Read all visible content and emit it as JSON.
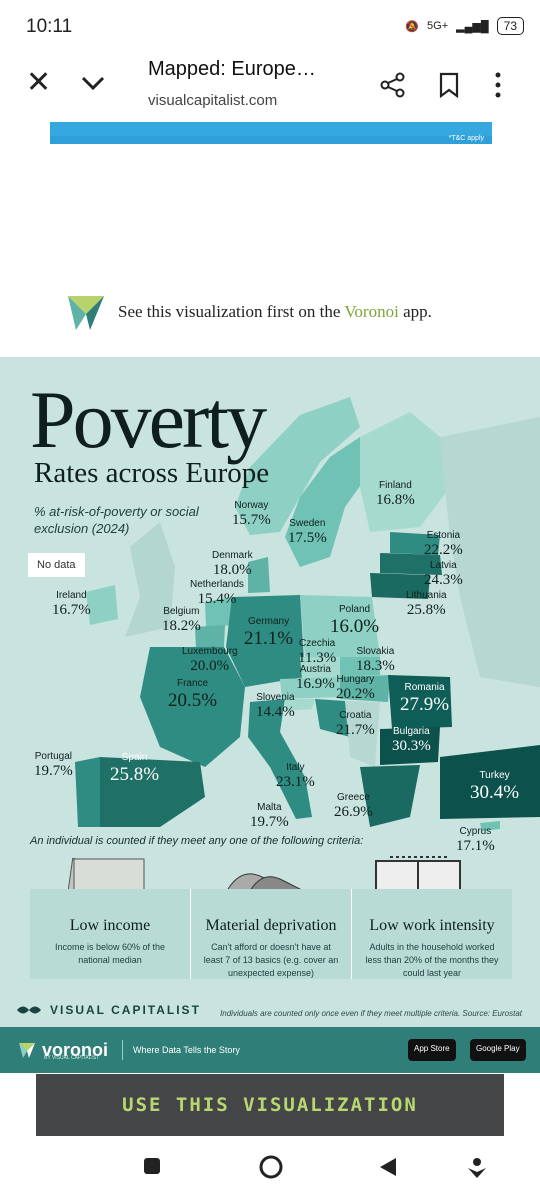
{
  "status": {
    "time": "10:11",
    "network": "5G+",
    "battery": "73"
  },
  "toolbar": {
    "title": "Mapped: Europe…",
    "url": "visualcapitalist.com"
  },
  "ad": {
    "disclaimer": "*T&C apply"
  },
  "voronoi_promo": {
    "prefix": "See this visualization first on the ",
    "brand": "Voronoi",
    "suffix": " app."
  },
  "infographic": {
    "title": "Poverty",
    "subtitle": "Rates across Europe",
    "description": "% at-risk-of-poverty or social exclusion (2024)",
    "no_data": "No data",
    "countries": [
      {
        "name": "Finland",
        "value": "16.8%"
      },
      {
        "name": "Norway",
        "value": "15.7%"
      },
      {
        "name": "Sweden",
        "value": "17.5%"
      },
      {
        "name": "Estonia",
        "value": "22.2%"
      },
      {
        "name": "Latvia",
        "value": "24.3%"
      },
      {
        "name": "Lithuania",
        "value": "25.8%"
      },
      {
        "name": "Denmark",
        "value": "18.0%"
      },
      {
        "name": "Netherlands",
        "value": "15.4%"
      },
      {
        "name": "Ireland",
        "value": "16.7%"
      },
      {
        "name": "Belgium",
        "value": "18.2%"
      },
      {
        "name": "Germany",
        "value": "21.1%"
      },
      {
        "name": "Poland",
        "value": "16.0%"
      },
      {
        "name": "Czechia",
        "value": "11.3%"
      },
      {
        "name": "Slovakia",
        "value": "18.3%"
      },
      {
        "name": "Luxembourg",
        "value": "20.0%"
      },
      {
        "name": "Austria",
        "value": "16.9%"
      },
      {
        "name": "Hungary",
        "value": "20.2%"
      },
      {
        "name": "France",
        "value": "20.5%"
      },
      {
        "name": "Romania",
        "value": "27.9%"
      },
      {
        "name": "Slovenia",
        "value": "14.4%"
      },
      {
        "name": "Croatia",
        "value": "21.7%"
      },
      {
        "name": "Bulgaria",
        "value": "30.3%"
      },
      {
        "name": "Portugal",
        "value": "19.7%"
      },
      {
        "name": "Spain",
        "value": "25.8%"
      },
      {
        "name": "Italy",
        "value": "23.1%"
      },
      {
        "name": "Turkey",
        "value": "30.4%"
      },
      {
        "name": "Malta",
        "value": "19.7%"
      },
      {
        "name": "Greece",
        "value": "26.9%"
      },
      {
        "name": "Cyprus",
        "value": "17.1%"
      }
    ],
    "criteria_heading": "An individual is counted if they meet any one of the following criteria:",
    "criteria": [
      {
        "title": "Low income",
        "desc": "Income is below 60% of the national median"
      },
      {
        "title": "Material deprivation",
        "desc": "Can't afford or doesn't have at least 7 of 13 basics (e.g. cover an unexpected expense)"
      },
      {
        "title": "Low work intensity",
        "desc": "Adults in the household worked less than 20% of the months they could last year"
      }
    ],
    "brand": "VISUAL CAPITALIST",
    "footnote": "Individuals are counted only once even if they meet multiple criteria. Source: Eurostat",
    "footer_brand": "voronoi",
    "footer_by": "BY VISUAL CAPITALIST",
    "footer_tagline": "Where Data Tells the Story",
    "app_store": "App Store",
    "google_play": "Google Play"
  },
  "cta": {
    "label": "USE THIS VISUALIZATION"
  },
  "colors": {
    "accent_green": "#7aa63a",
    "cta_bg": "#444547",
    "cta_text": "#b9d770",
    "teal_dark": "#0f5d57"
  }
}
